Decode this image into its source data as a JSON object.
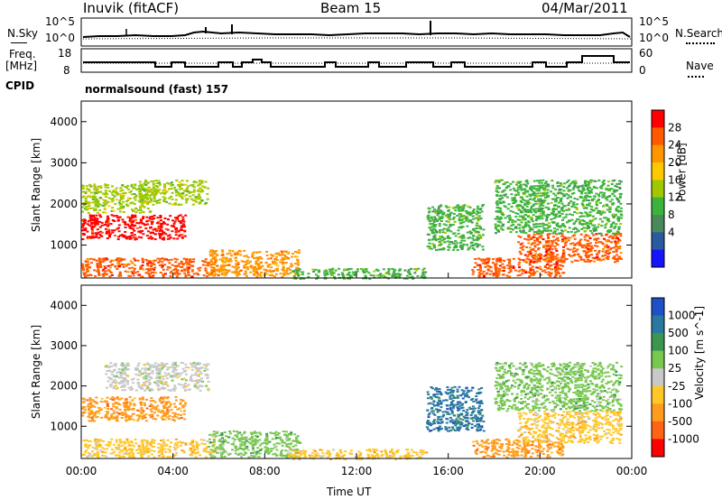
{
  "header": {
    "station": "Inuvik (fitACF)",
    "beam": "Beam 15",
    "date": "04/Mar/2011"
  },
  "top_panels": {
    "noise": {
      "left_label": "N.Sky",
      "right_label": "N.Search",
      "left_ticks": [
        "10^5",
        "10^0"
      ],
      "right_ticks": [
        "10^5",
        "10^0"
      ]
    },
    "freq": {
      "left_label_1": "Freq.",
      "left_label_2": "[MHz]",
      "right_label": "Nave",
      "left_ticks": [
        "18",
        "8"
      ],
      "right_ticks": [
        "60",
        "0"
      ]
    },
    "cpid": {
      "label": "CPID",
      "text": "normalsound (fast) 157"
    }
  },
  "chart_data": [
    {
      "type": "heatmap",
      "title": "",
      "ylabel": "Slant Range [km]",
      "xlabel": "",
      "xlim": [
        0,
        24
      ],
      "ylim": [
        200,
        4500
      ],
      "x_ticks": [
        "00:00",
        "04:00",
        "08:00",
        "12:00",
        "16:00",
        "20:00",
        "00:00"
      ],
      "y_ticks": [
        "1000",
        "2000",
        "3000",
        "4000"
      ],
      "colorbar": {
        "label": "Power [dB]",
        "ticks": [
          "28",
          "24",
          "20",
          "16",
          "12",
          "8",
          "4"
        ],
        "colors": [
          "#ff0000",
          "#ff5a00",
          "#ff9600",
          "#ffc800",
          "#a0c800",
          "#3cb43c",
          "#4a8a5a",
          "#2a5aa0",
          "#1414ff"
        ]
      },
      "regions": [
        {
          "t0": 0.0,
          "t1": 4.5,
          "r0": 1150,
          "r1": 1750,
          "value": 28
        },
        {
          "t0": 0.0,
          "t1": 5.8,
          "r0": 250,
          "r1": 700,
          "value": 24
        },
        {
          "t0": 5.5,
          "t1": 9.5,
          "r0": 250,
          "r1": 900,
          "value": 22
        },
        {
          "t0": 0.0,
          "t1": 3.0,
          "r0": 1800,
          "r1": 2500,
          "value": 12
        },
        {
          "t0": 2.5,
          "t1": 5.5,
          "r0": 2000,
          "r1": 2600,
          "value": 12
        },
        {
          "t0": 15.0,
          "t1": 17.5,
          "r0": 900,
          "r1": 2000,
          "value": 10
        },
        {
          "t0": 17.0,
          "t1": 21.0,
          "r0": 250,
          "r1": 700,
          "value": 24
        },
        {
          "t0": 19.0,
          "t1": 23.5,
          "r0": 600,
          "r1": 1300,
          "value": 26
        },
        {
          "t0": 18.0,
          "t1": 23.5,
          "r0": 1300,
          "r1": 2600,
          "value": 10
        },
        {
          "t0": 9.0,
          "t1": 15.0,
          "r0": 200,
          "r1": 450,
          "value": 8
        }
      ]
    },
    {
      "type": "heatmap",
      "title": "",
      "ylabel": "Slant Range [km]",
      "xlabel": "Time UT",
      "xlim": [
        0,
        24
      ],
      "ylim": [
        200,
        4500
      ],
      "x_ticks": [
        "00:00",
        "04:00",
        "08:00",
        "12:00",
        "16:00",
        "20:00",
        "00:00"
      ],
      "y_ticks": [
        "1000",
        "2000",
        "3000",
        "4000"
      ],
      "colorbar": {
        "label": "Velocity [m s^-1]",
        "ticks": [
          "1000",
          "500",
          "100",
          "25",
          "-25",
          "-100",
          "-500",
          "-1000"
        ],
        "colors": [
          "#1e50c8",
          "#2a78a0",
          "#3c9650",
          "#78c850",
          "#c8c8c8",
          "#ffc828",
          "#ff9b1e",
          "#ff6414",
          "#ff0000"
        ]
      },
      "regions": [
        {
          "t0": 0.0,
          "t1": 4.5,
          "r0": 1150,
          "r1": 1750,
          "value": -500
        },
        {
          "t0": 0.0,
          "t1": 5.8,
          "r0": 250,
          "r1": 700,
          "value": -100
        },
        {
          "t0": 5.5,
          "t1": 9.5,
          "r0": 250,
          "r1": 900,
          "value": 25
        },
        {
          "t0": 1.0,
          "t1": 5.5,
          "r0": 1900,
          "r1": 2600,
          "value": 0
        },
        {
          "t0": 15.0,
          "t1": 17.5,
          "r0": 900,
          "r1": 2000,
          "value": 500
        },
        {
          "t0": 17.0,
          "t1": 21.0,
          "r0": 250,
          "r1": 700,
          "value": -500
        },
        {
          "t0": 19.0,
          "t1": 23.5,
          "r0": 600,
          "r1": 1400,
          "value": -100
        },
        {
          "t0": 18.0,
          "t1": 23.5,
          "r0": 1400,
          "r1": 2600,
          "value": 25
        },
        {
          "t0": 9.0,
          "t1": 15.0,
          "r0": 200,
          "r1": 450,
          "value": -100
        }
      ]
    }
  ]
}
